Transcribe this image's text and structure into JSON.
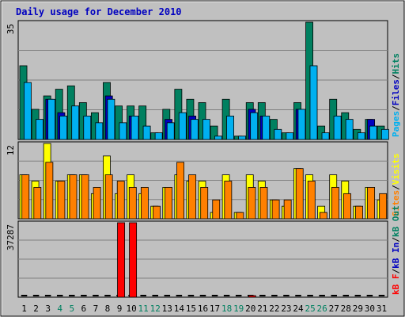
{
  "chart_data": {
    "type": "bar",
    "title": "Daily usage for December 2010",
    "days": [
      "1",
      "2",
      "3",
      "4",
      "5",
      "6",
      "7",
      "8",
      "9",
      "10",
      "11",
      "12",
      "13",
      "14",
      "15",
      "16",
      "17",
      "18",
      "19",
      "20",
      "21",
      "22",
      "23",
      "24",
      "25",
      "26",
      "27",
      "28",
      "29",
      "30",
      "31"
    ],
    "weekend_days": [
      "4",
      "5",
      "11",
      "12",
      "18",
      "19",
      "25",
      "26"
    ],
    "panels": [
      {
        "id": "hits",
        "max_label": "35",
        "ymax": 35,
        "labels": [
          {
            "text": "Pages",
            "color": "#00b0f0"
          },
          {
            "text": "Files",
            "color": "#0000c0"
          },
          {
            "text": "Hits",
            "color": "#008060"
          }
        ],
        "series": [
          {
            "name": "Hits",
            "color": "#008060",
            "values": [
              22,
              9,
              13,
              15,
              16,
              11,
              8,
              17,
              10,
              10,
              10,
              2,
              9,
              15,
              12,
              11,
              4,
              12,
              1,
              11,
              11,
              6,
              2,
              11,
              35,
              4,
              12,
              8,
              3,
              6,
              4
            ]
          },
          {
            "name": "Files",
            "color": "#0000c0",
            "values": [
              0,
              0,
              12,
              8,
              0,
              0,
              0,
              13,
              0,
              7,
              0,
              0,
              6,
              0,
              7,
              0,
              0,
              0,
              0,
              9,
              7,
              0,
              0,
              9,
              0,
              0,
              0,
              0,
              0,
              6,
              0
            ]
          },
          {
            "name": "Pages",
            "color": "#00b0f0",
            "values": [
              17,
              6,
              12,
              7,
              10,
              7,
              5,
              12,
              5,
              7,
              4,
              2,
              5,
              8,
              6,
              6,
              1,
              7,
              1,
              8,
              7,
              3,
              2,
              9,
              22,
              2,
              7,
              6,
              2,
              4,
              3
            ]
          }
        ]
      },
      {
        "id": "visits",
        "max_label": "12",
        "ymax": 12,
        "labels": [
          {
            "text": "Sites",
            "color": "#ff8000"
          },
          {
            "text": "Visits",
            "color": "#ffff00"
          }
        ],
        "series": [
          {
            "name": "Visits",
            "color": "#ffff00",
            "values": [
              7,
              6,
              12,
              6,
              7,
              7,
              4,
              10,
              4,
              7,
              4,
              2,
              5,
              7,
              6,
              6,
              1,
              7,
              1,
              7,
              6,
              3,
              2,
              8,
              7,
              2,
              7,
              6,
              2,
              5,
              3
            ]
          },
          {
            "name": "Sites",
            "color": "#ff8000",
            "values": [
              7,
              5,
              9,
              6,
              7,
              7,
              5,
              7,
              6,
              5,
              5,
              2,
              5,
              9,
              7,
              5,
              3,
              6,
              1,
              5,
              5,
              3,
              3,
              8,
              6,
              1,
              5,
              4,
              2,
              5,
              4
            ]
          }
        ]
      },
      {
        "id": "kbytes",
        "max_label": "37287",
        "ymax": 37287,
        "labels": [
          {
            "text": "kB F",
            "color": "#ff0000"
          },
          {
            "text": "kB In",
            "color": "#0000c0"
          },
          {
            "text": "kB Out",
            "color": "#008060"
          }
        ],
        "series": [
          {
            "name": "kB F",
            "color": "#ff0000",
            "values": [
              0,
              0,
              0,
              0,
              0,
              0,
              0,
              0,
              37287,
              37287,
              0,
              0,
              0,
              0,
              0,
              0,
              0,
              0,
              0,
              700,
              0,
              0,
              0,
              0,
              0,
              0,
              0,
              0,
              0,
              0,
              0
            ]
          }
        ]
      }
    ]
  }
}
